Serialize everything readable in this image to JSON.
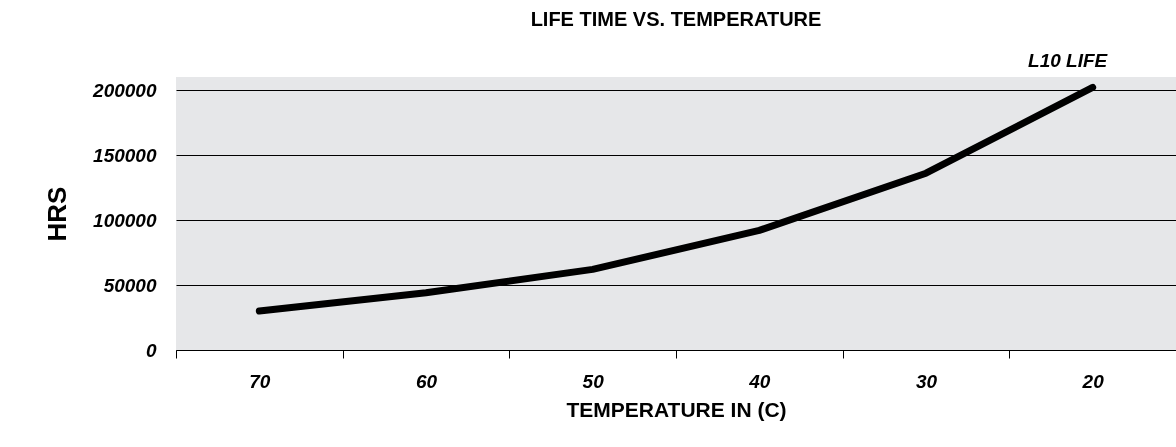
{
  "chart_data": {
    "type": "line",
    "title": "LIFE TIME VS. TEMPERATURE",
    "xlabel": "TEMPERATURE IN (C)",
    "ylabel": "HRS",
    "categories": [
      "70",
      "60",
      "50",
      "40",
      "30",
      "20"
    ],
    "series": [
      {
        "name": "L10 LIFE",
        "color": "#000000",
        "values": [
          30000,
          44000,
          62000,
          92000,
          136000,
          202000
        ]
      }
    ],
    "ylim": [
      0,
      210000
    ],
    "yticks": [
      0,
      50000,
      100000,
      150000,
      200000
    ],
    "grid": "y",
    "marker": "none",
    "line_style": "solid"
  }
}
